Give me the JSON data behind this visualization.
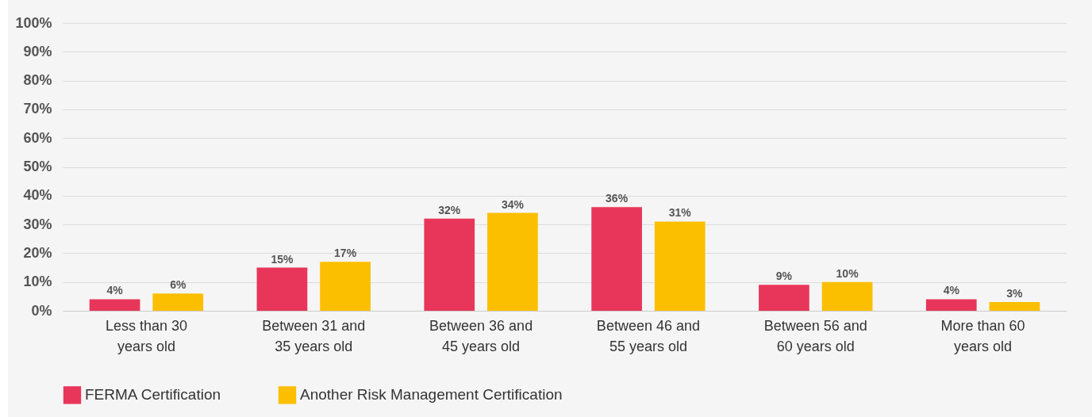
{
  "chart_data": {
    "type": "bar",
    "categories": [
      "Less than 30\nyears old",
      "Between 31 and\n35 years old",
      "Between 36 and\n45 years old",
      "Between 46 and\n55 years old",
      "Between 56 and\n60 years old",
      "More than 60\nyears old"
    ],
    "series": [
      {
        "name": "FERMA Certification",
        "color": "#e8365a",
        "values": [
          4,
          15,
          32,
          36,
          9,
          4
        ],
        "value_labels": [
          "4%",
          "15%",
          "32%",
          "36%",
          "9%",
          "4%"
        ]
      },
      {
        "name": "Another Risk Management Certification",
        "color": "#fbbf00",
        "values": [
          6,
          17,
          34,
          31,
          10,
          3
        ],
        "value_labels": [
          "6%",
          "17%",
          "34%",
          "31%",
          "10%",
          "3%"
        ]
      }
    ],
    "ylim": [
      0,
      100
    ],
    "yticks": [
      {
        "value": 0,
        "label": "0%"
      },
      {
        "value": 10,
        "label": "10%"
      },
      {
        "value": 20,
        "label": "20%"
      },
      {
        "value": 30,
        "label": "30%"
      },
      {
        "value": 40,
        "label": "40%"
      },
      {
        "value": 50,
        "label": "50%"
      },
      {
        "value": 60,
        "label": "60%"
      },
      {
        "value": 70,
        "label": "70%"
      },
      {
        "value": 80,
        "label": "80%"
      },
      {
        "value": 90,
        "label": "90%"
      },
      {
        "value": 100,
        "label": "100%"
      }
    ],
    "grid": "y",
    "legend": "bottom"
  }
}
